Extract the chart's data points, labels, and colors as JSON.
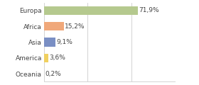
{
  "categories": [
    "Europa",
    "Africa",
    "Asia",
    "America",
    "Oceania"
  ],
  "values": [
    71.9,
    15.2,
    9.1,
    3.6,
    0.2
  ],
  "labels": [
    "71,9%",
    "15,2%",
    "9,1%",
    "3,6%",
    "0,2%"
  ],
  "bar_colors": [
    "#b5c98e",
    "#f0a87a",
    "#7a8fc4",
    "#f0d060",
    "#b5c98e"
  ],
  "background_color": "#ffffff",
  "xlim": [
    0,
    100
  ],
  "bar_height": 0.55,
  "label_fontsize": 6.5,
  "tick_fontsize": 6.5,
  "grid_color": "#cccccc",
  "grid_ticks": [
    0,
    33.3,
    66.6,
    100
  ]
}
